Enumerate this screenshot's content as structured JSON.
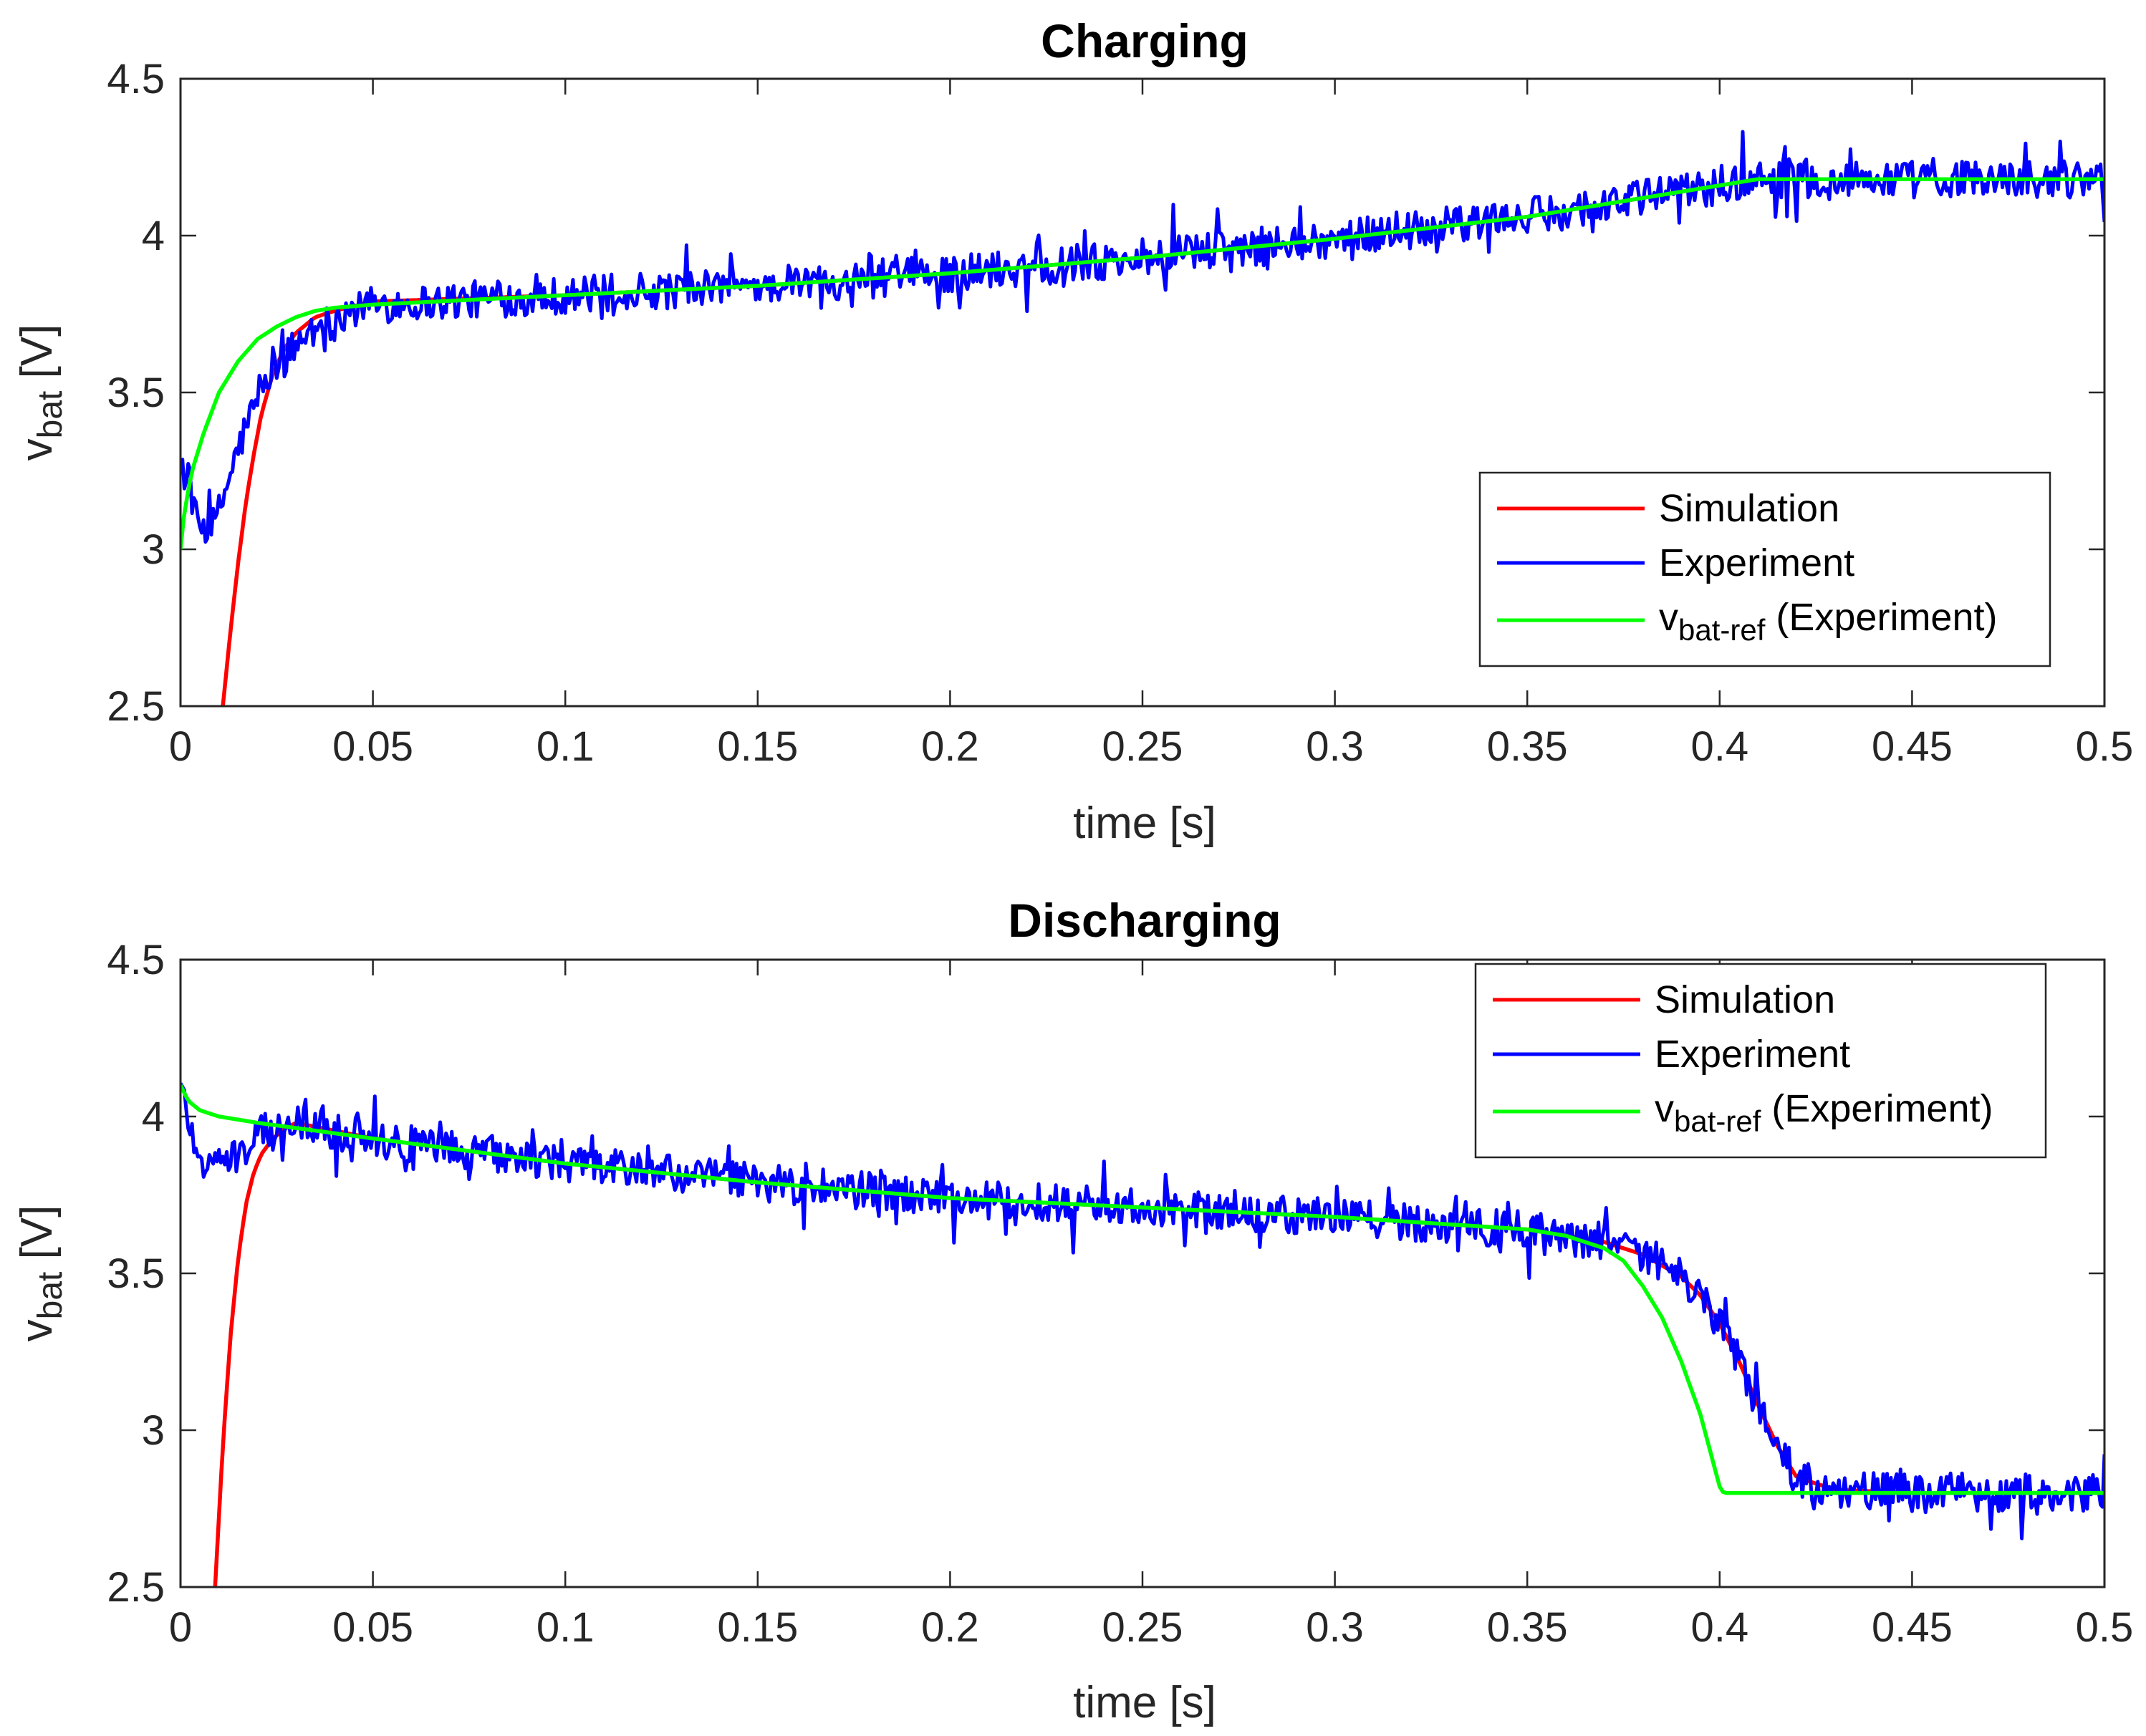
{
  "chart_data": [
    {
      "type": "line",
      "title": "Charging",
      "xlabel": "time [s]",
      "ylabel": {
        "main": "v",
        "sub": "bat",
        "unit": " [V]"
      },
      "xlim": [
        0,
        0.5
      ],
      "ylim": [
        2.5,
        4.5
      ],
      "xticks": [
        0,
        0.05,
        0.1,
        0.15,
        0.2,
        0.25,
        0.3,
        0.35,
        0.4,
        0.45,
        0.5
      ],
      "xtick_labels": [
        "0",
        "0.05",
        "0.1",
        "0.15",
        "0.2",
        "0.25",
        "0.3",
        "0.35",
        "0.4",
        "0.45",
        "0.5"
      ],
      "yticks": [
        2.5,
        3,
        3.5,
        4,
        4.5
      ],
      "ytick_labels": [
        "2.5",
        "3",
        "3.5",
        "4",
        "4.5"
      ],
      "legend_position": "right",
      "series": [
        {
          "name": "Simulation",
          "color": "#ff0000",
          "x": [
            0.011,
            0.013,
            0.015,
            0.017,
            0.019,
            0.021,
            0.024,
            0.027,
            0.03,
            0.035,
            0.04,
            0.05,
            0.1,
            0.15,
            0.2,
            0.25,
            0.3,
            0.35,
            0.4,
            0.41,
            0.45,
            0.5
          ],
          "y": [
            2.5,
            2.74,
            2.96,
            3.15,
            3.3,
            3.43,
            3.56,
            3.64,
            3.69,
            3.74,
            3.76,
            3.79,
            3.81,
            3.84,
            3.88,
            3.93,
            3.99,
            4.06,
            4.16,
            4.18,
            4.18,
            4.18
          ]
        },
        {
          "name": "Experiment",
          "color": "#0000ff",
          "noise_amplitude": 0.06,
          "x": [
            0,
            0.003,
            0.006,
            0.009,
            0.012,
            0.015,
            0.018,
            0.021,
            0.025,
            0.03,
            0.035,
            0.04,
            0.05,
            0.1,
            0.15,
            0.2,
            0.25,
            0.3,
            0.35,
            0.4,
            0.41,
            0.45,
            0.5
          ],
          "y": [
            3.3,
            3.12,
            3.05,
            3.08,
            3.2,
            3.32,
            3.42,
            3.5,
            3.58,
            3.65,
            3.7,
            3.74,
            3.78,
            3.81,
            3.84,
            3.88,
            3.93,
            3.99,
            4.06,
            4.16,
            4.18,
            4.18,
            4.18
          ]
        },
        {
          "name": "v_bat-ref (Experiment)",
          "legend_main": "v",
          "legend_sub": "bat-ref",
          "legend_rest": " (Experiment)",
          "color": "#00ff00",
          "x": [
            0,
            0.001,
            0.003,
            0.006,
            0.01,
            0.015,
            0.02,
            0.025,
            0.03,
            0.035,
            0.04,
            0.05,
            0.1,
            0.15,
            0.2,
            0.25,
            0.3,
            0.35,
            0.4,
            0.41,
            0.45,
            0.5
          ],
          "y": [
            3.0,
            3.12,
            3.25,
            3.37,
            3.5,
            3.6,
            3.67,
            3.71,
            3.74,
            3.76,
            3.77,
            3.78,
            3.81,
            3.84,
            3.88,
            3.93,
            3.99,
            4.06,
            4.16,
            4.18,
            4.18,
            4.18
          ]
        }
      ],
      "legend": [
        {
          "label": "Simulation"
        },
        {
          "label": "Experiment"
        },
        {
          "main": "v",
          "sub": "bat-ref",
          "rest": " (Experiment)"
        }
      ]
    },
    {
      "type": "line",
      "title": "Discharging",
      "xlabel": "time [s]",
      "ylabel": {
        "main": "v",
        "sub": "bat",
        "unit": " [V]"
      },
      "xlim": [
        0,
        0.5
      ],
      "ylim": [
        2.5,
        4.5
      ],
      "xticks": [
        0,
        0.05,
        0.1,
        0.15,
        0.2,
        0.25,
        0.3,
        0.35,
        0.4,
        0.45,
        0.5
      ],
      "xtick_labels": [
        "0",
        "0.05",
        "0.1",
        "0.15",
        "0.2",
        "0.25",
        "0.3",
        "0.35",
        "0.4",
        "0.45",
        "0.5"
      ],
      "yticks": [
        2.5,
        3,
        3.5,
        4,
        4.5
      ],
      "ytick_labels": [
        "2.5",
        "3",
        "3.5",
        "4",
        "4.5"
      ],
      "legend_position": "top-right",
      "series": [
        {
          "name": "Simulation",
          "color": "#ff0000",
          "x": [
            0.009,
            0.011,
            0.013,
            0.015,
            0.017,
            0.019,
            0.021,
            0.024,
            0.027,
            0.03,
            0.05,
            0.1,
            0.15,
            0.2,
            0.25,
            0.3,
            0.35,
            0.37,
            0.38,
            0.39,
            0.395,
            0.4,
            0.405,
            0.41,
            0.415,
            0.42,
            0.43,
            0.45,
            0.5
          ],
          "y": [
            2.5,
            2.95,
            3.3,
            3.55,
            3.72,
            3.82,
            3.88,
            3.93,
            3.96,
            3.98,
            3.93,
            3.85,
            3.79,
            3.74,
            3.71,
            3.68,
            3.64,
            3.6,
            3.56,
            3.49,
            3.43,
            3.34,
            3.22,
            3.08,
            2.95,
            2.85,
            2.81,
            2.8,
            2.8
          ]
        },
        {
          "name": "Experiment",
          "color": "#0000ff",
          "noise_amplitude": 0.06,
          "x": [
            0,
            0.003,
            0.006,
            0.01,
            0.015,
            0.02,
            0.025,
            0.03,
            0.05,
            0.1,
            0.15,
            0.2,
            0.25,
            0.3,
            0.35,
            0.37,
            0.38,
            0.39,
            0.395,
            0.4,
            0.405,
            0.41,
            0.415,
            0.42,
            0.43,
            0.45,
            0.5
          ],
          "y": [
            4.1,
            3.95,
            3.85,
            3.84,
            3.88,
            3.93,
            3.98,
            3.98,
            3.93,
            3.85,
            3.79,
            3.74,
            3.71,
            3.68,
            3.64,
            3.6,
            3.56,
            3.49,
            3.43,
            3.34,
            3.22,
            3.08,
            2.95,
            2.85,
            2.81,
            2.8,
            2.8
          ]
        },
        {
          "name": "v_bat-ref (Experiment)",
          "legend_main": "v",
          "legend_sub": "bat-ref",
          "legend_rest": " (Experiment)",
          "color": "#00ff00",
          "x": [
            0,
            0.002,
            0.005,
            0.01,
            0.02,
            0.05,
            0.1,
            0.15,
            0.2,
            0.25,
            0.3,
            0.35,
            0.36,
            0.37,
            0.375,
            0.38,
            0.385,
            0.39,
            0.395,
            0.4,
            0.401,
            0.45,
            0.5
          ],
          "y": [
            4.1,
            4.05,
            4.02,
            4.0,
            3.98,
            3.93,
            3.85,
            3.79,
            3.74,
            3.71,
            3.68,
            3.64,
            3.62,
            3.58,
            3.54,
            3.46,
            3.36,
            3.22,
            3.05,
            2.82,
            2.8,
            2.8,
            2.8
          ]
        }
      ],
      "legend": [
        {
          "label": "Simulation"
        },
        {
          "label": "Experiment"
        },
        {
          "main": "v",
          "sub": "bat-ref",
          "rest": " (Experiment)"
        }
      ]
    }
  ]
}
